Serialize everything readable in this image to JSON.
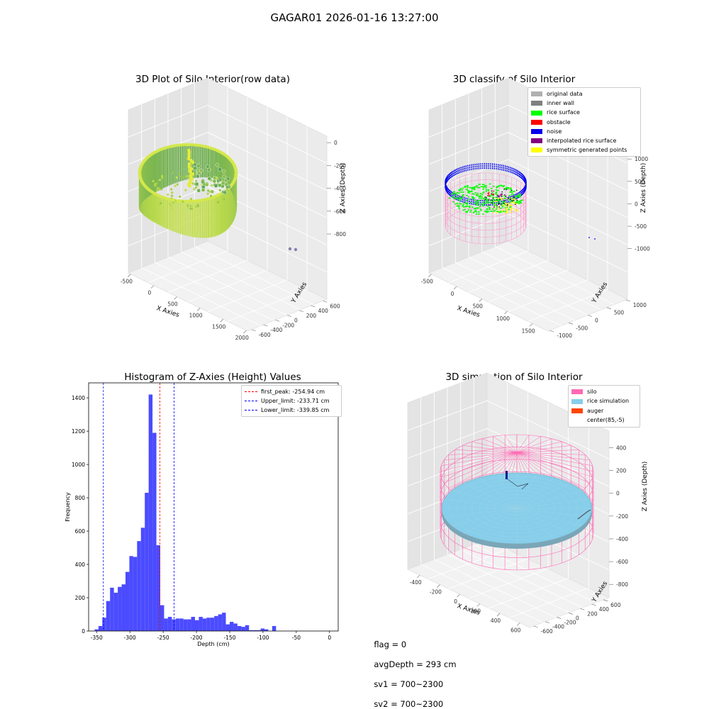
{
  "figure": {
    "suptitle": "GAGAR01 2026-01-16 13:27:00",
    "footer": {
      "flag": "flag = 0",
      "avg_depth": "avgDepth = 293 cm",
      "sv1": "sv1 = 700~2300",
      "sv2": "sv2 = 700~2300"
    }
  },
  "chart_data": [
    {
      "type": "scatter",
      "title": "3D Plot of Silo Interior(row data)",
      "xlabel": "X Axies",
      "ylabel": "Y Axies",
      "zlabel": "Z Axies (Depth)",
      "x_ticks": [
        "-500",
        "0",
        "500",
        "1000",
        "1500",
        "2000"
      ],
      "y_ticks": [
        "-600",
        "-400",
        "-200",
        "0",
        "200",
        "400",
        "600"
      ],
      "z_ticks": [
        "0",
        "-200",
        "-400",
        "-600",
        "-800"
      ],
      "colors": {
        "surface_low": "#2e8b57",
        "surface_high": "#d4e84a",
        "outlier": "#8a7fb0"
      }
    },
    {
      "type": "scatter",
      "title": "3D classify of Silo Interior",
      "xlabel": "X Axies",
      "ylabel": "Y Axies",
      "zlabel": "Z Axies (Depth)",
      "x_ticks": [
        "-500",
        "0",
        "500",
        "1000",
        "1500"
      ],
      "y_ticks": [
        "-1000",
        "-500",
        "0",
        "500",
        "1000"
      ],
      "z_ticks": [
        "1000",
        "500",
        "0",
        "-500",
        "-1000"
      ],
      "legend_position": "top-right",
      "legend": [
        {
          "label": "original data",
          "color": "#b0b0b0"
        },
        {
          "label": "inner wall",
          "color": "#808080"
        },
        {
          "label": "rice surface",
          "color": "#00ff00"
        },
        {
          "label": "obstacle",
          "color": "#ff0000"
        },
        {
          "label": "noise",
          "color": "#0000ee"
        },
        {
          "label": "interpolated rice surface",
          "color": "#800080"
        },
        {
          "label": "symmetric generated points",
          "color": "#ffff00"
        }
      ]
    },
    {
      "type": "bar",
      "title": "Histogram of Z-Axies (Height) Values",
      "xlabel": "Depth (cm)",
      "ylabel": "Frequency",
      "xlim": [
        -362,
        13
      ],
      "ylim": [
        0,
        1490
      ],
      "x_ticks": [
        -350,
        -300,
        -250,
        -200,
        -150,
        -100,
        -50,
        0
      ],
      "y_ticks": [
        0,
        200,
        400,
        600,
        800,
        1000,
        1200,
        1400
      ],
      "bin_start": -353,
      "bin_width": 5.8,
      "values": [
        10,
        30,
        80,
        180,
        260,
        230,
        265,
        280,
        355,
        450,
        445,
        540,
        620,
        830,
        1420,
        1190,
        515,
        155,
        75,
        85,
        70,
        75,
        75,
        70,
        70,
        85,
        65,
        85,
        75,
        80,
        80,
        90,
        100,
        110,
        40,
        55,
        45,
        30,
        25,
        35,
        5,
        5,
        5,
        15,
        10,
        0,
        30
      ],
      "bar_color": "#4b4bff",
      "legend_position": "top-right",
      "lines": [
        {
          "label": "first_peak: -254.94 cm",
          "value": -254.94,
          "color": "#ff0000"
        },
        {
          "label": "Upper_limit: -233.71 cm",
          "value": -233.71,
          "color": "#0000ff"
        },
        {
          "label": "Lower_limit: -339.85 cm",
          "value": -339.85,
          "color": "#0000ff"
        }
      ]
    },
    {
      "type": "scatter",
      "title": "3D simulation of Silo Interior",
      "xlabel": "X Axies",
      "ylabel": "Y Axies",
      "zlabel": "Z Axies (Depth)",
      "x_ticks": [
        "-400",
        "-200",
        "0",
        "200",
        "400",
        "600"
      ],
      "y_ticks": [
        "-600",
        "-400",
        "-200",
        "0",
        "200",
        "400",
        "600"
      ],
      "z_ticks": [
        "400",
        "200",
        "0",
        "-200",
        "-400",
        "-600",
        "-800"
      ],
      "legend_position": "top-right",
      "legend": [
        {
          "label": "silo",
          "color": "#ff69b4"
        },
        {
          "label": "rice simulation",
          "color": "#87ceeb"
        },
        {
          "label": "auger",
          "color": "#ff4500"
        },
        {
          "label": "center(85,-5)",
          "color": "#ffffff"
        }
      ]
    }
  ]
}
